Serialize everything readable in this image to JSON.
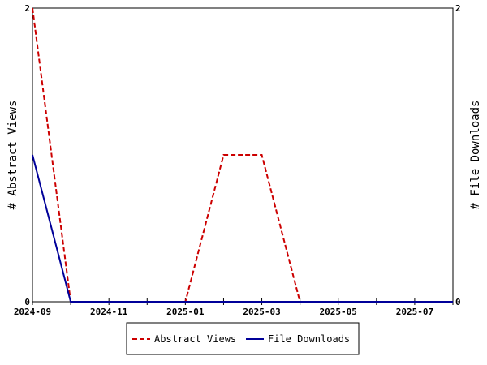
{
  "chart_data": {
    "type": "line",
    "x": [
      "2024-09",
      "2024-10",
      "2024-11",
      "2024-12",
      "2025-01",
      "2025-02",
      "2025-03",
      "2025-04",
      "2025-05",
      "2025-06",
      "2025-07",
      "2025-08"
    ],
    "x_tick_labels": [
      "2024-09",
      "2024-11",
      "2025-01",
      "2025-03",
      "2025-05",
      "2025-07"
    ],
    "series": [
      {
        "name": "Abstract Views",
        "axis": "left",
        "color": "#cc0000",
        "style": "dashed",
        "values": [
          2,
          0,
          0,
          0,
          0,
          1,
          1,
          0,
          0,
          0,
          0,
          0
        ]
      },
      {
        "name": "File Downloads",
        "axis": "right",
        "color": "#000099",
        "style": "solid",
        "values": [
          1,
          0,
          0,
          0,
          0,
          0,
          0,
          0,
          0,
          0,
          0,
          0
        ]
      }
    ],
    "ylabel_left": "# Abstract Views",
    "ylabel_right": "# File Downloads",
    "ylim_left": [
      0,
      2
    ],
    "ylim_right": [
      0,
      2
    ],
    "y_tick_labels_left": [
      "0",
      "2"
    ],
    "y_tick_labels_right": [
      "0",
      "2"
    ],
    "grid": false,
    "legend_position": "bottom"
  }
}
